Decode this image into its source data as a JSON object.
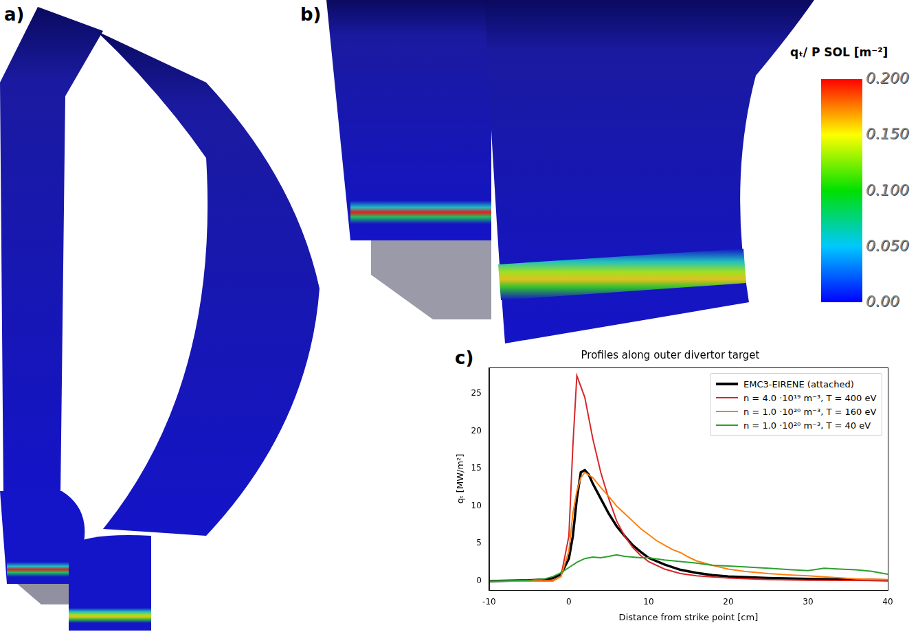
{
  "panel_labels": [
    "a)",
    "b)",
    "c)"
  ],
  "colorbar": {
    "title": "qₜ/ P SOL [m⁻²]",
    "range": [
      0,
      0.2
    ],
    "ticks": [
      {
        "value": 0,
        "label": "0.00"
      },
      {
        "value": 0.05,
        "label": "0.050"
      },
      {
        "value": 0.1,
        "label": "0.100"
      },
      {
        "value": 0.15,
        "label": "0.150"
      },
      {
        "value": 0.2,
        "label": "0.200"
      }
    ]
  },
  "chart_data": {
    "type": "line",
    "title": "Profiles along outer divertor target",
    "x_label": "Distance from strike point [cm]",
    "y_label": "qₜ [MW/m²]",
    "xlim": [
      -10,
      40
    ],
    "xticks": [
      -10,
      0,
      10,
      20,
      30,
      40
    ],
    "ylim": [
      -1.2,
      28.5
    ],
    "yticks": [
      0,
      5,
      10,
      15,
      20,
      25
    ],
    "grid": false,
    "legend": "upper right",
    "series": [
      {
        "name": "EMC3-EIRENE (attached)",
        "color": "#000000",
        "x": [
          -10,
          -5,
          -3,
          -2,
          -1,
          0,
          0.5,
          1,
          1.5,
          2,
          2.5,
          3,
          4,
          5,
          6,
          7,
          8,
          9,
          10,
          12,
          14,
          16,
          18,
          20,
          25,
          30,
          35,
          40
        ],
        "values": [
          0,
          0.1,
          0.2,
          0.4,
          0.9,
          3,
          6,
          11,
          14.5,
          14.8,
          14.2,
          13,
          11,
          9,
          7.3,
          6,
          4.8,
          3.9,
          3.1,
          2.2,
          1.5,
          1.1,
          0.8,
          0.6,
          0.4,
          0.3,
          0.2,
          0.1
        ]
      },
      {
        "name": "n = 4.0 ·10¹⁹ m⁻³, T = 400 eV",
        "color": "#d62728",
        "x": [
          -10,
          -2,
          -1,
          0,
          0.5,
          1,
          2,
          3,
          4,
          5,
          6,
          7,
          8,
          9,
          10,
          12,
          14,
          16,
          20,
          25,
          30,
          40
        ],
        "values": [
          0,
          0.1,
          0.6,
          6,
          18,
          27.4,
          24.5,
          19,
          14.5,
          11,
          8,
          6,
          4.5,
          3.4,
          2.6,
          1.6,
          1,
          0.7,
          0.4,
          0.2,
          0.1,
          0.05
        ]
      },
      {
        "name": "n = 1.0 ·10²⁰ m⁻³, T = 160 eV",
        "color": "#ff7f0e",
        "x": [
          -10,
          -2,
          -1,
          0,
          0.5,
          1,
          1.5,
          2,
          3,
          4,
          5,
          6,
          7,
          8,
          9,
          10,
          11,
          12,
          13,
          14,
          15,
          16,
          18,
          20,
          22,
          25,
          28,
          30,
          33,
          36,
          40
        ],
        "values": [
          0,
          0,
          0.6,
          4,
          9,
          12,
          13.8,
          14.5,
          13.8,
          12.5,
          11.3,
          10,
          9,
          8,
          7,
          6.2,
          5.4,
          4.8,
          4.2,
          3.8,
          3.2,
          2.7,
          2.1,
          1.6,
          1.3,
          1,
          0.8,
          0.7,
          0.5,
          0.3,
          0.2
        ]
      },
      {
        "name": "n = 1.0 ·10²⁰ m⁻³, T = 40 eV",
        "color": "#2ca02c",
        "x": [
          -10,
          -5,
          -3,
          -2,
          -1,
          0,
          1,
          2,
          3,
          4,
          5,
          6,
          7,
          8,
          9,
          10,
          12,
          14,
          16,
          18,
          20,
          22,
          25,
          28,
          30,
          32,
          34,
          36,
          38,
          40
        ],
        "values": [
          0,
          0.1,
          0.3,
          0.6,
          1.1,
          1.8,
          2.5,
          3,
          3.2,
          3.1,
          3.3,
          3.5,
          3.3,
          3.2,
          3.1,
          3.1,
          2.8,
          2.6,
          2.4,
          2.1,
          2,
          1.9,
          1.7,
          1.5,
          1.4,
          1.7,
          1.6,
          1.5,
          1.3,
          0.9
        ]
      }
    ]
  }
}
